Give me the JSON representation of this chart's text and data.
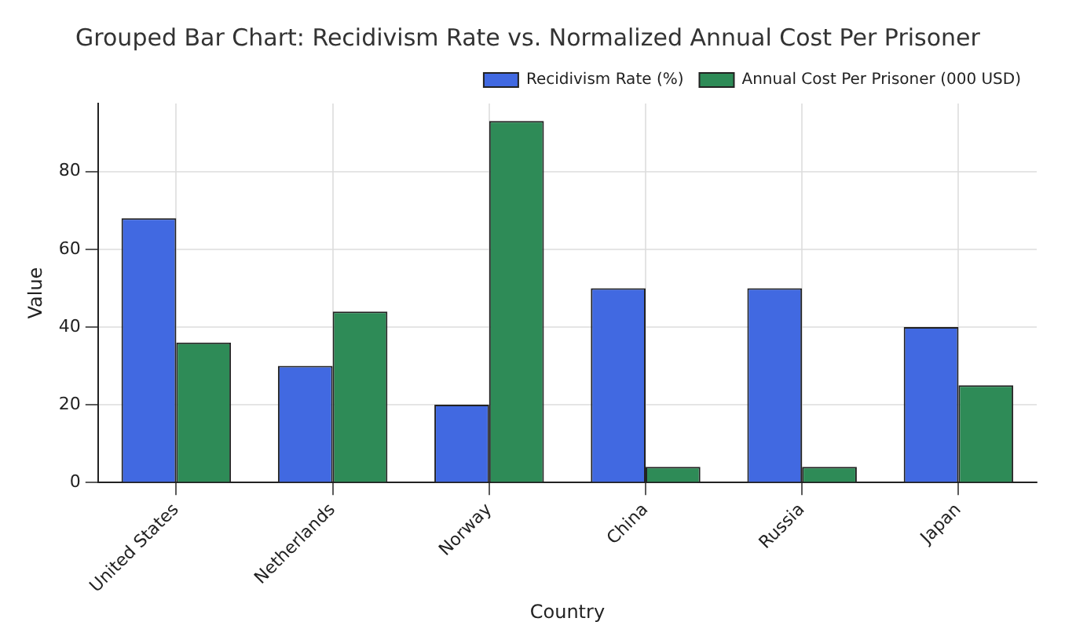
{
  "chart_data": {
    "type": "bar",
    "title": "Grouped Bar Chart: Recidivism Rate vs. Normalized Annual Cost Per Prisoner",
    "xlabel": "Country",
    "ylabel": "Value",
    "categories": [
      "United States",
      "Netherlands",
      "Norway",
      "China",
      "Russia",
      "Japan"
    ],
    "series": [
      {
        "name": "Recidivism Rate (%)",
        "color": "#4169e1",
        "values": [
          68,
          30,
          20,
          50,
          50,
          40
        ]
      },
      {
        "name": "Annual Cost Per Prisoner (000 USD)",
        "color": "#2e8b57",
        "values": [
          36,
          44,
          93,
          4,
          4,
          25
        ]
      }
    ],
    "ylim": [
      0,
      97.5
    ],
    "yticks": [
      0,
      20,
      40,
      60,
      80
    ],
    "grid": true,
    "legend": "top right"
  }
}
